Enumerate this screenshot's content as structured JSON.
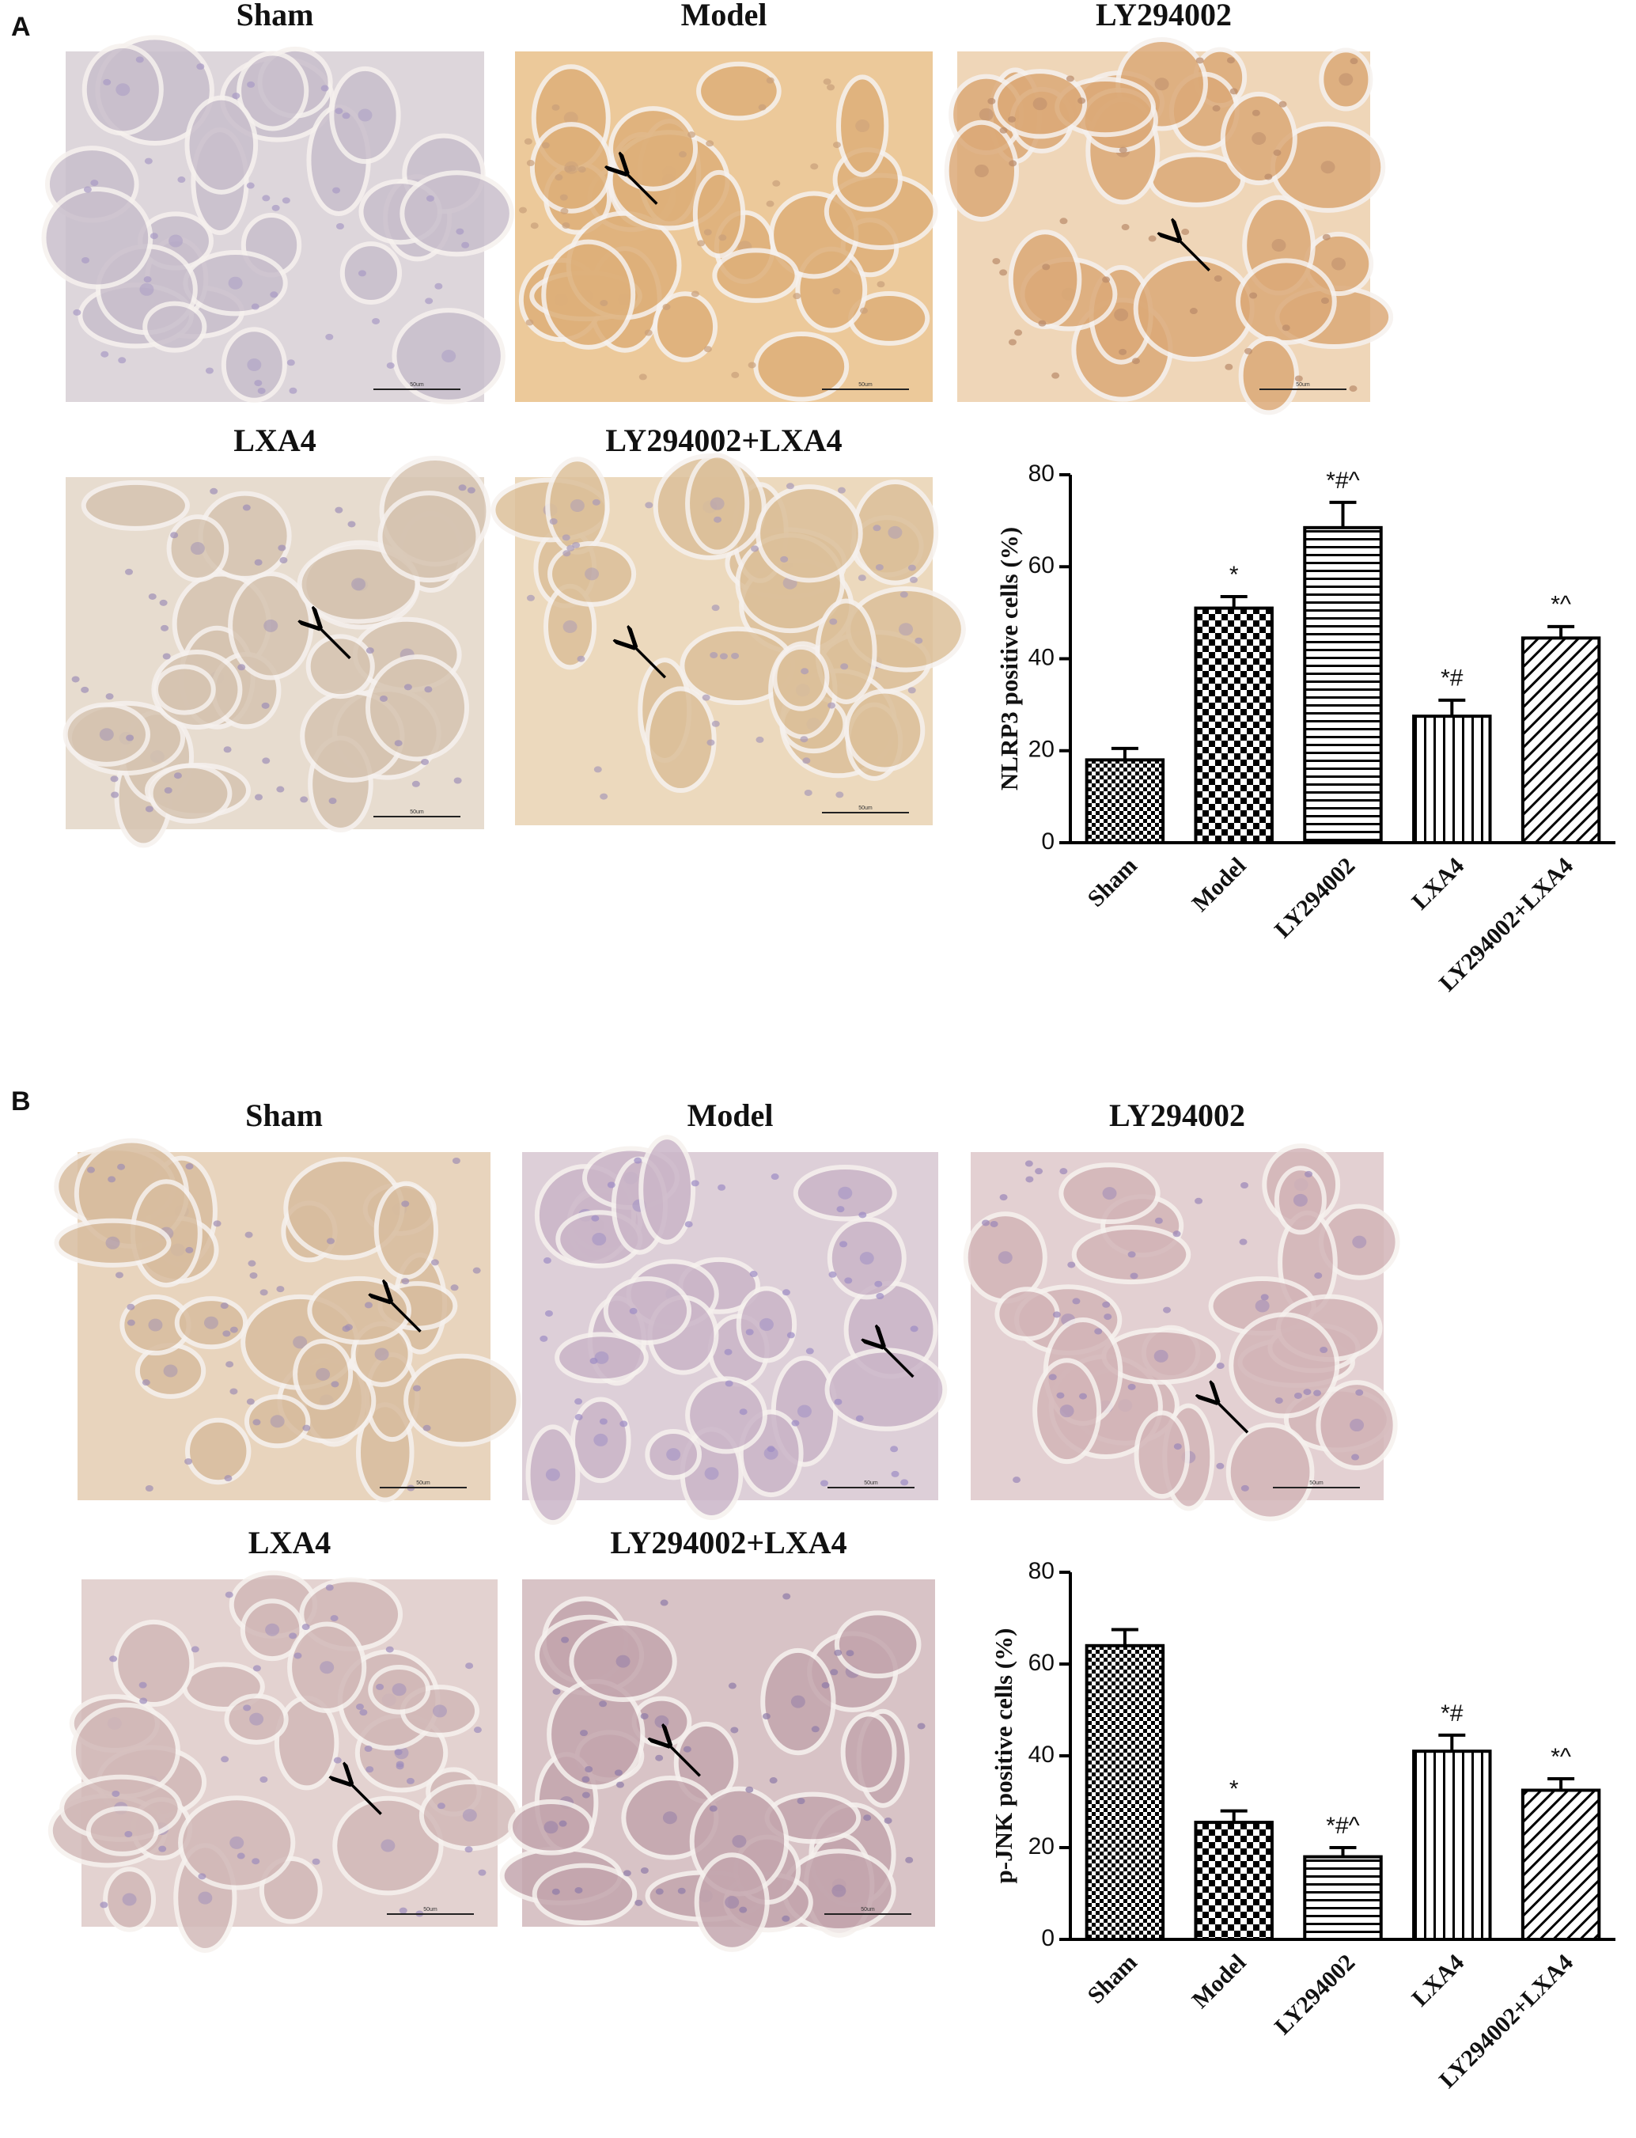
{
  "panels": [
    {
      "label": "A",
      "photos": [
        {
          "title": "Sham",
          "scale_bar": "50um"
        },
        {
          "title": "Model",
          "scale_bar": "50um"
        },
        {
          "title": "LY294002",
          "scale_bar": "50um"
        },
        {
          "title": "LXA4",
          "scale_bar": "50um"
        },
        {
          "title": "LY294002+LXA4",
          "scale_bar": "50um"
        }
      ]
    },
    {
      "label": "B",
      "photos": [
        {
          "title": "Sham",
          "scale_bar": "50um"
        },
        {
          "title": "Model",
          "scale_bar": "50um"
        },
        {
          "title": "LY294002",
          "scale_bar": "50um"
        },
        {
          "title": "LXA4",
          "scale_bar": "50um"
        },
        {
          "title": "LY294002+LXA4",
          "scale_bar": "50um"
        }
      ]
    }
  ],
  "chart_data": [
    {
      "type": "bar",
      "y_label": "NLRP3 positive cells (%)",
      "categories": [
        "Sham",
        "Model",
        "LY294002",
        "LXA4",
        "LY294002+LXA4"
      ],
      "values": [
        18,
        51,
        68.5,
        27.5,
        44.5
      ],
      "errors": [
        2.5,
        2.5,
        5.5,
        3.5,
        2.5
      ],
      "annotations": [
        null,
        "*",
        "*#^",
        "*#",
        "*^"
      ],
      "patterns": [
        "checker-fine",
        "checker",
        "horizontal",
        "vertical",
        "diagonal"
      ],
      "color": "#000000",
      "ylim": [
        0,
        80
      ],
      "yticks": [
        0,
        20,
        40,
        60,
        80
      ]
    },
    {
      "type": "bar",
      "y_label": "p-JNK positive cells (%)",
      "categories": [
        "Sham",
        "Model",
        "LY294002",
        "LXA4",
        "LY294002+LXA4"
      ],
      "values": [
        64,
        25.5,
        18,
        41,
        32.5
      ],
      "errors": [
        3.5,
        2.5,
        2,
        3.5,
        2.5
      ],
      "annotations": [
        null,
        "*",
        "*#^",
        "*#",
        "*^"
      ],
      "patterns": [
        "checker-fine",
        "checker",
        "horizontal",
        "vertical",
        "diagonal"
      ],
      "color": "#000000",
      "ylim": [
        0,
        80
      ],
      "yticks": [
        0,
        20,
        40,
        60,
        80
      ]
    }
  ]
}
